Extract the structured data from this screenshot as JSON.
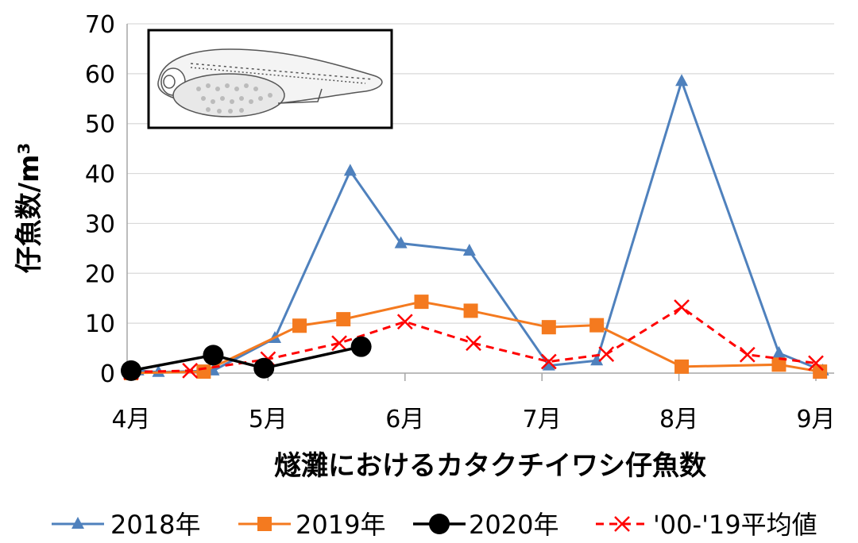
{
  "chart_data": {
    "type": "line",
    "xlabel": "燧灘におけるカタクチイワシ仔魚数",
    "ylabel": "仔魚数/m³",
    "ylim": [
      0,
      70
    ],
    "xlim": [
      4,
      9.1
    ],
    "yticks": [
      "0",
      "10",
      "20",
      "30",
      "40",
      "50",
      "60",
      "70"
    ],
    "xticks": [
      {
        "label": "4月",
        "value": 4
      },
      {
        "label": "5月",
        "value": 5
      },
      {
        "label": "6月",
        "value": 6
      },
      {
        "label": "7月",
        "value": 7
      },
      {
        "label": "8月",
        "value": 8
      },
      {
        "label": "9月",
        "value": 9
      }
    ],
    "grid": "horizontal",
    "legend_position": "bottom",
    "inset": "larval fish drawing (top-left)",
    "series": [
      {
        "name": "2018年",
        "color": "#4f81bd",
        "marker": "triangle",
        "dash": "",
        "x": [
          4.05,
          4.2,
          4.6,
          5.05,
          5.6,
          5.97,
          6.47,
          7.05,
          7.4,
          8.02,
          8.73,
          9.05
        ],
        "y": [
          0.5,
          0.2,
          0.5,
          7.0,
          40.5,
          26.0,
          24.5,
          1.5,
          2.5,
          58.5,
          4.0,
          0.5
        ]
      },
      {
        "name": "2019年",
        "color": "#f47a1f",
        "marker": "square",
        "dash": "",
        "x": [
          4.0,
          4.53,
          5.23,
          5.55,
          6.12,
          6.48,
          7.05,
          7.4,
          8.02,
          8.73,
          9.03
        ],
        "y": [
          0.0,
          0.3,
          9.5,
          10.8,
          14.3,
          12.5,
          9.2,
          9.6,
          1.3,
          1.7,
          0.3
        ]
      },
      {
        "name": "2020年",
        "color": "#000000",
        "marker": "circle",
        "dash": "",
        "x": [
          4.0,
          4.6,
          4.97,
          5.68
        ],
        "y": [
          0.5,
          3.6,
          1.0,
          5.3
        ]
      },
      {
        "name": "'00-'19平均値",
        "color": "#ff0000",
        "marker": "x",
        "dash": "10,7",
        "x": [
          4.0,
          4.43,
          5.0,
          5.52,
          6.0,
          6.5,
          7.05,
          7.47,
          8.02,
          8.5,
          9.0
        ],
        "y": [
          0.2,
          0.5,
          2.8,
          6.0,
          10.3,
          6.0,
          2.3,
          3.8,
          13.2,
          3.7,
          2.0
        ]
      }
    ]
  }
}
